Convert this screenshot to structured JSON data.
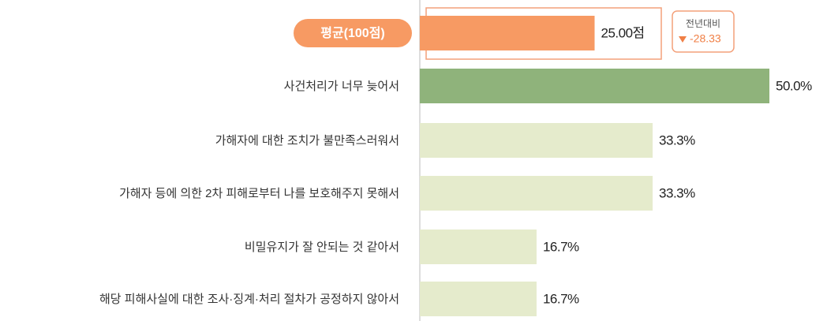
{
  "chart_data": {
    "type": "bar",
    "orientation": "horizontal",
    "categories": [
      "평균(100점)",
      "사건처리가 너무 늦어서",
      "가해자에 대한 조치가 불만족스러워서",
      "가해자 등에 의한 2차 피해로부터 나를 보호해주지 못해서",
      "비밀유지가 잘 안되는 것 같아서",
      "해당 피해사실에 대한 조사·징계·처리 절차가 공정하지 않아서"
    ],
    "values": [
      25,
      50,
      33.3,
      33.3,
      16.7,
      16.7
    ],
    "value_labels": [
      "25.00점",
      "50.0%",
      "33.3%",
      "33.3%",
      "16.7%",
      "16.7%"
    ],
    "colors": [
      "#f79a63",
      "#8fb37b",
      "#e5ebcc",
      "#e5ebcc",
      "#e5ebcc",
      "#e5ebcc"
    ],
    "xlim": [
      0,
      50
    ],
    "comparison": {
      "label": "전년대비",
      "value": -28.33
    }
  }
}
